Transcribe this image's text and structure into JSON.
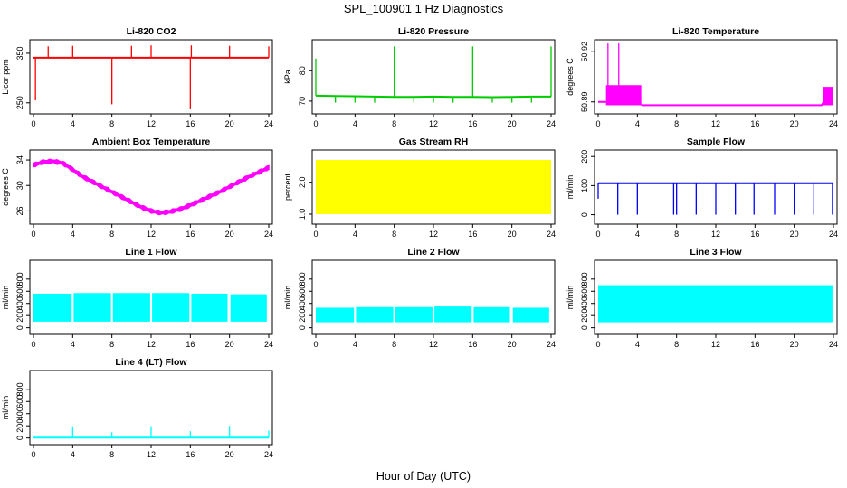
{
  "figure": {
    "title": "SPL_100901  1 Hz Diagnostics",
    "xlabel": "Hour of Day (UTC)"
  },
  "chart_data": [
    {
      "type": "line",
      "title": "Li-820 CO2",
      "ylabel": "Licor ppm",
      "color": "#ff0000",
      "xlim": [
        0,
        24
      ],
      "ylim": [
        235,
        370
      ],
      "xticks": [
        0,
        4,
        8,
        12,
        16,
        20,
        24
      ],
      "yticks": [
        250,
        350
      ],
      "yticklabels": [
        "250",
        "350"
      ],
      "x": [
        0,
        2,
        4,
        6,
        8,
        10,
        12,
        14,
        16,
        18,
        20,
        22,
        24
      ],
      "y": [
        341,
        341,
        341,
        341,
        341,
        341,
        341,
        341,
        341,
        341,
        341,
        341,
        341
      ],
      "spikes": [
        [
          0.2,
          255
        ],
        [
          1.5,
          364
        ],
        [
          4,
          365
        ],
        [
          8,
          247
        ],
        [
          10,
          365
        ],
        [
          12,
          366
        ],
        [
          16,
          237
        ],
        [
          16.1,
          366
        ],
        [
          20,
          365
        ],
        [
          24,
          364
        ]
      ]
    },
    {
      "type": "line",
      "title": "Li-820 Pressure",
      "ylabel": "kPa",
      "color": "#00cc00",
      "xlim": [
        0,
        24
      ],
      "ylim": [
        67,
        89
      ],
      "xticks": [
        0,
        4,
        8,
        12,
        16,
        20,
        24
      ],
      "yticks": [
        70,
        80
      ],
      "yticklabels": [
        "70",
        "80"
      ],
      "x": [
        0,
        2,
        4,
        6,
        8,
        10,
        12,
        14,
        16,
        18,
        20,
        22,
        24
      ],
      "y": [
        71.8,
        71.7,
        71.6,
        71.5,
        71.4,
        71.4,
        71.5,
        71.4,
        71.4,
        71.3,
        71.4,
        71.5,
        71.5
      ],
      "spikes": [
        [
          0,
          84
        ],
        [
          8,
          88
        ],
        [
          16,
          88
        ],
        [
          24,
          88
        ],
        [
          2,
          69.5
        ],
        [
          4,
          69.5
        ],
        [
          6,
          69.5
        ],
        [
          10,
          69.5
        ],
        [
          12,
          69.5
        ],
        [
          14,
          69.5
        ],
        [
          18,
          69.5
        ],
        [
          20,
          69.5
        ],
        [
          22,
          69.5
        ]
      ]
    },
    {
      "type": "line",
      "title": "Li-820 Temperature",
      "ylabel": "degrees C",
      "color": "#ff00ff",
      "xlim": [
        0,
        24
      ],
      "ylim": [
        50.885,
        50.925
      ],
      "xticks": [
        0,
        4,
        8,
        12,
        16,
        20,
        24
      ],
      "yticks": [
        50.89,
        50.92
      ],
      "yticklabels": [
        "50.89",
        "50.92"
      ],
      "x": [
        0,
        1,
        4,
        4.5,
        8,
        12,
        16,
        20,
        22.8,
        23,
        24
      ],
      "y": [
        50.89,
        50.89,
        50.89,
        50.888,
        50.888,
        50.888,
        50.888,
        50.888,
        50.888,
        50.89,
        50.89
      ],
      "bands": [
        [
          0.8,
          4.4,
          50.888,
          50.9
        ],
        [
          22.9,
          24,
          50.888,
          50.899
        ]
      ],
      "spikes": [
        [
          1.0,
          50.925
        ],
        [
          2.1,
          50.925
        ]
      ]
    },
    {
      "type": "line",
      "title": "Ambient Box Temperature",
      "ylabel": "degrees C",
      "color": "#ff00ff",
      "xlim": [
        0,
        24
      ],
      "ylim": [
        24.5,
        35
      ],
      "xticks": [
        0,
        4,
        8,
        12,
        16,
        20,
        24
      ],
      "yticks": [
        26,
        30,
        34
      ],
      "yticklabels": [
        "26",
        "30",
        "34"
      ],
      "x": [
        0,
        1,
        2,
        3,
        4,
        5,
        6,
        7,
        8,
        9,
        10,
        11,
        12,
        13,
        14,
        15,
        16,
        17,
        18,
        19,
        20,
        21,
        22,
        23,
        24
      ],
      "y": [
        33.2,
        33.7,
        33.8,
        33.5,
        32.5,
        31.4,
        30.6,
        29.8,
        29.0,
        28.2,
        27.4,
        26.6,
        26.0,
        25.7,
        25.9,
        26.3,
        26.9,
        27.6,
        28.3,
        29.0,
        29.8,
        30.6,
        31.4,
        32.1,
        32.8
      ],
      "noise": 0.35
    },
    {
      "type": "area",
      "title": "Gas Stream RH",
      "ylabel": "percent",
      "color": "#ffff00",
      "xlim": [
        0,
        24
      ],
      "ylim": [
        0.8,
        2.9
      ],
      "xticks": [
        0,
        4,
        8,
        12,
        16,
        20,
        24
      ],
      "yticks": [
        1.0,
        2.0
      ],
      "yticklabels": [
        "1.0",
        "2.0"
      ],
      "x": [
        0,
        24
      ],
      "upper": [
        2.7,
        2.7
      ],
      "lower": [
        1.0,
        1.0
      ],
      "bands": [
        [
          0,
          24,
          1.0,
          2.7
        ]
      ]
    },
    {
      "type": "line",
      "title": "Sample Flow",
      "ylabel": "ml/min",
      "color": "#0000ff",
      "xlim": [
        0,
        24
      ],
      "ylim": [
        -20,
        210
      ],
      "xticks": [
        0,
        4,
        8,
        12,
        16,
        20,
        24
      ],
      "yticks": [
        0,
        100,
        200
      ],
      "yticklabels": [
        "0",
        "100",
        "200"
      ],
      "x": [
        0,
        4,
        8,
        12,
        16,
        20,
        24
      ],
      "y": [
        108,
        108,
        108,
        108,
        108,
        108,
        108
      ],
      "spikes": [
        [
          0,
          55
        ],
        [
          2,
          0
        ],
        [
          4,
          0
        ],
        [
          7.7,
          0
        ],
        [
          8,
          0
        ],
        [
          10,
          0
        ],
        [
          12,
          0
        ],
        [
          14,
          0
        ],
        [
          15.9,
          0
        ],
        [
          18,
          0
        ],
        [
          20,
          0
        ],
        [
          22,
          0
        ],
        [
          23.9,
          0
        ]
      ]
    },
    {
      "type": "area",
      "title": "Line 1 Flow",
      "ylabel": "ml/min",
      "color": "#00ffff",
      "xlim": [
        0,
        24
      ],
      "ylim": [
        -50,
        1050
      ],
      "xticks": [
        0,
        4,
        8,
        12,
        16,
        20,
        24
      ],
      "yticks": [
        0,
        200,
        400,
        600,
        800
      ],
      "yticklabels": [
        "0",
        "200",
        "400",
        "600",
        "800"
      ],
      "x": [
        0,
        24
      ],
      "upper": [
        550,
        550
      ],
      "lower": [
        100,
        100
      ],
      "bands": [
        [
          0,
          3.9,
          100,
          560
        ],
        [
          4.1,
          7.9,
          100,
          570
        ],
        [
          8.1,
          11.9,
          100,
          570
        ],
        [
          12.1,
          15.9,
          100,
          570
        ],
        [
          16.1,
          19.8,
          100,
          560
        ],
        [
          20.1,
          23.8,
          100,
          550
        ]
      ]
    },
    {
      "type": "area",
      "title": "Line 2 Flow",
      "ylabel": "ml/min",
      "color": "#00ffff",
      "xlim": [
        0,
        24
      ],
      "ylim": [
        -50,
        1050
      ],
      "xticks": [
        0,
        4,
        8,
        12,
        16,
        20,
        24
      ],
      "yticks": [
        0,
        200,
        400,
        600,
        800
      ],
      "yticklabels": [
        "0",
        "200",
        "400",
        "600",
        "800"
      ],
      "x": [
        0,
        24
      ],
      "upper": [
        340,
        340
      ],
      "lower": [
        90,
        90
      ],
      "bands": [
        [
          0,
          3.9,
          90,
          330
        ],
        [
          4.1,
          7.9,
          90,
          340
        ],
        [
          8.1,
          11.9,
          90,
          340
        ],
        [
          12.1,
          15.9,
          90,
          350
        ],
        [
          16.1,
          19.8,
          90,
          340
        ],
        [
          20.1,
          23.8,
          90,
          330
        ]
      ]
    },
    {
      "type": "area",
      "title": "Line 3 Flow",
      "ylabel": "ml/min",
      "color": "#00ffff",
      "xlim": [
        0,
        24
      ],
      "ylim": [
        -50,
        1050
      ],
      "xticks": [
        0,
        4,
        8,
        12,
        16,
        20,
        24
      ],
      "yticks": [
        0,
        200,
        400,
        600,
        800
      ],
      "yticklabels": [
        "0",
        "200",
        "400",
        "600",
        "800"
      ],
      "x": [
        0,
        24
      ],
      "upper": [
        700,
        700
      ],
      "lower": [
        90,
        90
      ],
      "bands": [
        [
          0,
          23.9,
          90,
          700
        ]
      ]
    },
    {
      "type": "line",
      "title": "Line 4 (LT) Flow",
      "ylabel": "ml/min",
      "color": "#00ffff",
      "xlim": [
        0,
        24
      ],
      "ylim": [
        -50,
        1050
      ],
      "xticks": [
        0,
        4,
        8,
        12,
        16,
        20,
        24
      ],
      "yticks": [
        0,
        200,
        400,
        600,
        800
      ],
      "yticklabels": [
        "0",
        "200",
        "400",
        "600",
        "800"
      ],
      "x": [
        0,
        24
      ],
      "y": [
        5,
        5
      ],
      "spikes": [
        [
          4,
          190
        ],
        [
          8,
          95
        ],
        [
          12,
          195
        ],
        [
          16,
          110
        ],
        [
          20,
          200
        ],
        [
          24,
          120
        ]
      ]
    }
  ]
}
